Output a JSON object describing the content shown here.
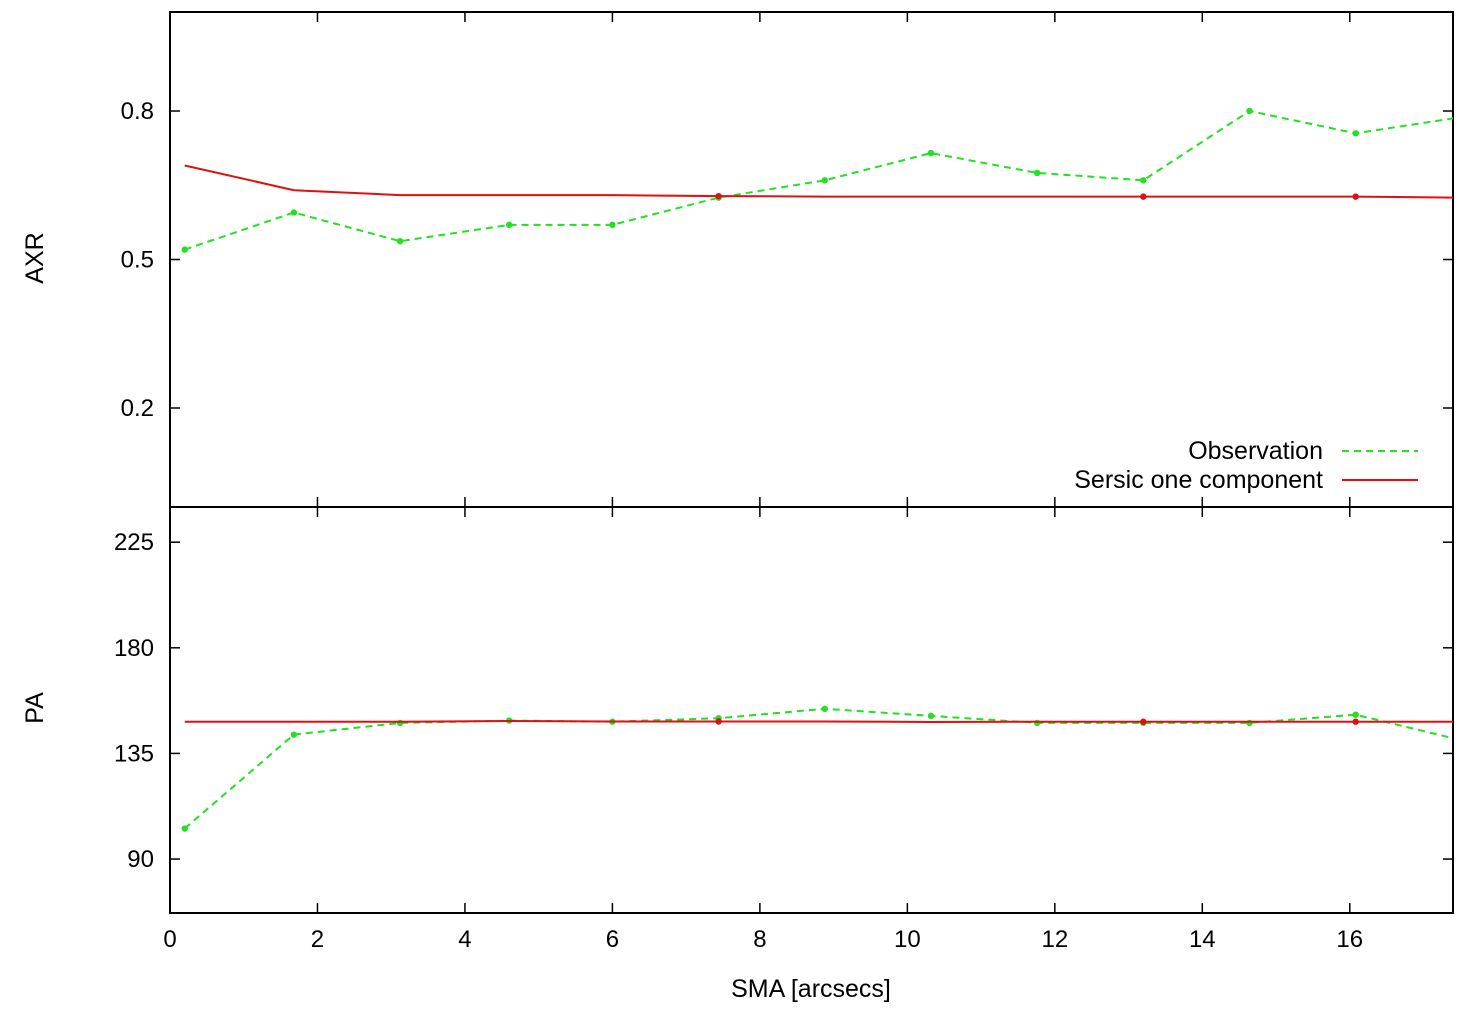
{
  "colors": {
    "observation": "#22e022",
    "model": "#e01010",
    "axes": "#000000",
    "background": "#ffffff"
  },
  "chart_data": [
    {
      "type": "line",
      "panel": "top",
      "title": "",
      "xlabel": "",
      "ylabel": "AXR",
      "xlim": [
        0,
        17.4
      ],
      "ylim": [
        0.0,
        1.0
      ],
      "yticks": [
        0.2,
        0.5,
        0.8
      ],
      "ytick_labels": [
        "0.2",
        "0.5",
        "0.8"
      ],
      "xticks": [
        2,
        4,
        6,
        8,
        10,
        12,
        14,
        16
      ],
      "grid": false,
      "legend_position": "bottom-right",
      "legend": [
        "Observation",
        "Sersic one component"
      ],
      "series": [
        {
          "name": "Observation",
          "style": "dashed-with-points",
          "x": [
            0.2,
            1.68,
            3.12,
            4.6,
            6.0,
            7.44,
            8.88,
            10.32,
            11.76,
            13.2,
            14.64,
            16.08,
            17.4
          ],
          "y": [
            0.52,
            0.595,
            0.537,
            0.57,
            0.57,
            0.625,
            0.66,
            0.715,
            0.675,
            0.66,
            0.8,
            0.755,
            0.785
          ]
        },
        {
          "name": "Sersic one component",
          "style": "solid",
          "x": [
            0.2,
            1.68,
            3.12,
            4.6,
            6.0,
            7.44,
            8.88,
            10.32,
            11.76,
            13.2,
            14.64,
            16.08,
            17.4
          ],
          "y": [
            0.69,
            0.64,
            0.63,
            0.63,
            0.63,
            0.628,
            0.627,
            0.627,
            0.627,
            0.627,
            0.627,
            0.627,
            0.625
          ]
        }
      ]
    },
    {
      "type": "line",
      "panel": "bottom",
      "title": "",
      "xlabel": "SMA [arcsecs]",
      "ylabel": "PA",
      "xlim": [
        0,
        17.4
      ],
      "ylim": [
        67,
        240
      ],
      "yticks": [
        90,
        135,
        180,
        225
      ],
      "ytick_labels": [
        "90",
        "135",
        "180",
        "225"
      ],
      "xticks": [
        0,
        2,
        4,
        6,
        8,
        10,
        12,
        14,
        16
      ],
      "xtick_labels": [
        "0",
        "2",
        "4",
        "6",
        "8",
        "10",
        "12",
        "14",
        "16"
      ],
      "grid": false,
      "series": [
        {
          "name": "Observation",
          "style": "dashed-with-points",
          "x": [
            0.2,
            1.68,
            3.12,
            4.6,
            6.0,
            7.44,
            8.88,
            10.32,
            11.76,
            13.2,
            14.64,
            16.08,
            17.4
          ],
          "y": [
            103,
            143,
            148,
            149,
            148.5,
            150,
            154,
            151,
            148,
            148,
            148,
            151.5,
            141.5
          ]
        },
        {
          "name": "Sersic one component",
          "style": "solid",
          "x": [
            0.2,
            1.68,
            3.12,
            4.6,
            6.0,
            7.44,
            8.88,
            10.32,
            11.76,
            13.2,
            14.64,
            16.08,
            17.4
          ],
          "y": [
            148.5,
            148.5,
            148.5,
            148.8,
            148.6,
            148.6,
            148.6,
            148.4,
            148.5,
            148.5,
            148.5,
            148.5,
            148.5
          ]
        }
      ]
    }
  ]
}
